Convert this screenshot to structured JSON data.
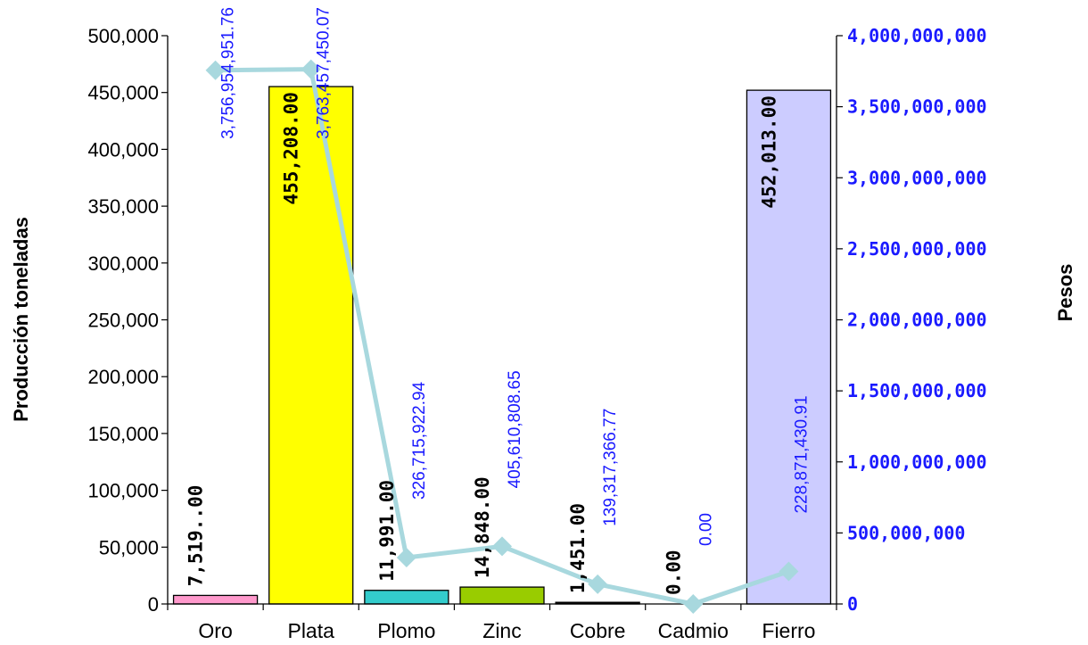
{
  "chart_data": {
    "type": "bar",
    "categories": [
      "Oro",
      "Plata",
      "Plomo",
      "Zinc",
      "Cobre",
      "Cadmio",
      "Fierro"
    ],
    "series": [
      {
        "name": "",
        "axis": "left",
        "type": "bar",
        "values": [
          7519,
          455208,
          11991,
          14848,
          1451,
          0,
          452013
        ],
        "labels": [
          "7,519..00",
          "455,208.00",
          "11,991.00",
          "14,848.00",
          "1,451.00",
          "0.00",
          "452,013.00"
        ],
        "colors": [
          "#ff99cc",
          "#ffff00",
          "#33cccc",
          "#99cc00",
          "#000000",
          "#000000",
          "#ccccff"
        ]
      },
      {
        "name": "",
        "axis": "right",
        "type": "line",
        "values": [
          3756954951.76,
          3763457450.07,
          326715922.94,
          405610808.65,
          139317366.77,
          0,
          228871430.91
        ],
        "labels": [
          "3,756,954,951.76",
          "3,763,457,450.07",
          "326,715,922.94",
          "405,610,808.65",
          "139,317,366.77",
          "0.00",
          "228,871,430.91"
        ],
        "color": "#a8d8de"
      }
    ],
    "ylabel": "Producción toneladas",
    "y2label": "Pesos",
    "ylim": [
      0,
      500000
    ],
    "y2lim": [
      0,
      4000000000
    ],
    "yticks": [
      "0",
      "50,000",
      "100,000",
      "150,000",
      "200,000",
      "250,000",
      "300,000",
      "350,000",
      "400,000",
      "450,000",
      "500,000"
    ],
    "y2ticks": [
      "0",
      "500,000,000",
      "1,000,000,000",
      "1,500,000,000",
      "2,000,000,000",
      "2,500,000,000",
      "3,000,000,000",
      "3,500,000,000",
      "4,000,000,000"
    ],
    "grid": false,
    "legend": "none"
  }
}
